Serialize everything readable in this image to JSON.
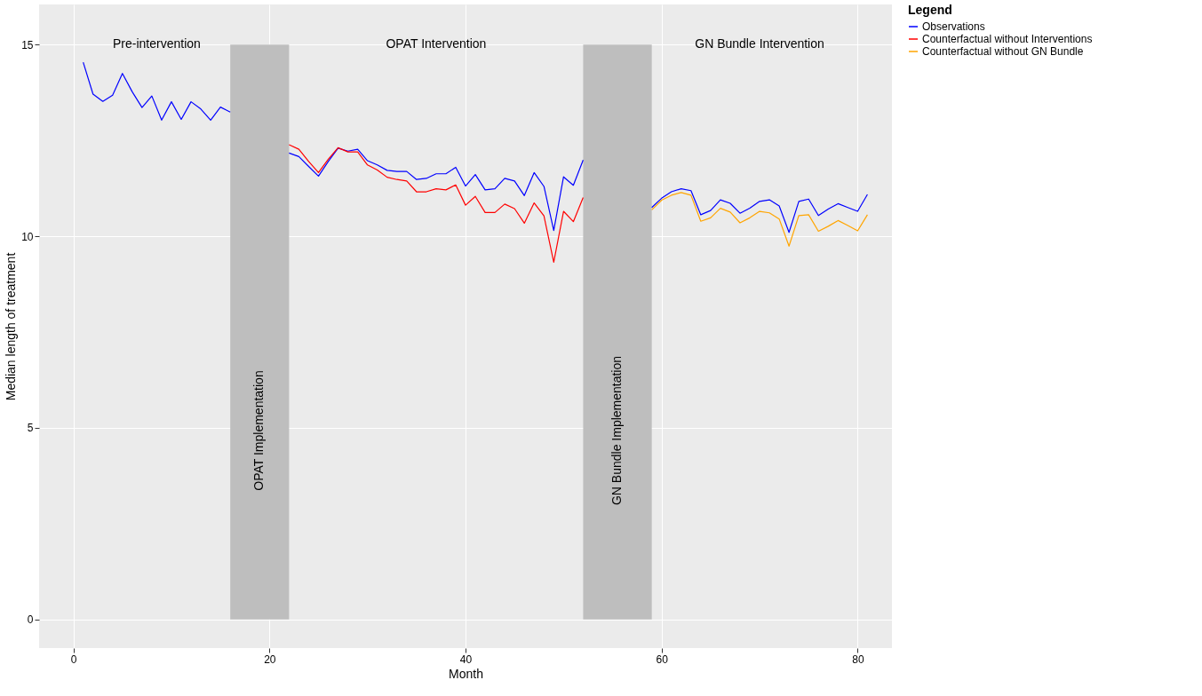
{
  "chart_data": {
    "type": "line",
    "xlabel": "Month",
    "ylabel": "Median length of treatment",
    "legend_title": "Legend",
    "xlim": [
      -3.5,
      83.5
    ],
    "ylim": [
      -0.75,
      16.05
    ],
    "xticks": [
      0,
      20,
      40,
      60,
      80
    ],
    "yticks": [
      0,
      5,
      10,
      15
    ],
    "grid": true,
    "legend": "right",
    "series": [
      {
        "name": "Observations",
        "color": "#0000ff",
        "x": [
          1,
          2,
          3,
          4,
          5,
          6,
          7,
          8,
          9,
          10,
          11,
          12,
          13,
          14,
          15,
          16,
          17,
          18,
          19,
          20,
          21,
          22,
          23,
          24,
          25,
          26,
          27,
          28,
          29,
          30,
          31,
          32,
          33,
          34,
          35,
          36,
          37,
          38,
          39,
          40,
          41,
          42,
          43,
          44,
          45,
          46,
          47,
          48,
          49,
          50,
          51,
          52,
          53,
          54,
          55,
          56,
          57,
          58,
          59,
          60,
          61,
          62,
          63,
          64,
          65,
          66,
          67,
          68,
          69,
          70,
          71,
          72,
          73,
          74,
          75,
          76,
          77,
          78,
          79,
          80,
          81
        ],
        "values": [
          14.54,
          13.71,
          13.52,
          13.68,
          14.25,
          13.77,
          13.36,
          13.66,
          13.03,
          13.51,
          13.05,
          13.51,
          13.32,
          13.03,
          13.37,
          13.24,
          null,
          null,
          null,
          null,
          null,
          12.17,
          12.08,
          11.82,
          11.57,
          11.95,
          12.3,
          12.22,
          12.27,
          11.97,
          11.86,
          11.72,
          11.69,
          11.69,
          11.48,
          11.51,
          11.63,
          11.63,
          11.8,
          11.31,
          11.61,
          11.21,
          11.24,
          11.51,
          11.44,
          11.06,
          11.66,
          11.3,
          10.15,
          11.55,
          11.33,
          11.99,
          null,
          null,
          null,
          null,
          null,
          null,
          10.75,
          10.99,
          11.16,
          11.24,
          11.19,
          10.56,
          10.67,
          10.95,
          10.86,
          10.6,
          10.73,
          10.91,
          10.95,
          10.79,
          10.1,
          10.91,
          10.97,
          10.54,
          10.71,
          10.85,
          10.75,
          10.65,
          11.09
        ]
      },
      {
        "name": "Counterfactual without Interventions",
        "color": "#ff0000",
        "x": [
          22,
          23,
          24,
          25,
          26,
          27,
          28,
          29,
          30,
          31,
          32,
          33,
          34,
          35,
          36,
          37,
          38,
          39,
          40,
          41,
          42,
          43,
          44,
          45,
          46,
          47,
          48,
          49,
          50,
          51,
          52
        ],
        "values": [
          12.39,
          12.27,
          11.95,
          11.66,
          12.01,
          12.31,
          12.2,
          12.2,
          11.86,
          11.73,
          11.54,
          11.48,
          11.44,
          11.16,
          11.16,
          11.24,
          11.21,
          11.34,
          10.81,
          11.04,
          10.62,
          10.62,
          10.84,
          10.72,
          10.34,
          10.87,
          10.53,
          9.32,
          10.65,
          10.38,
          11.01
        ]
      },
      {
        "name": "Counterfactual without GN Bundle",
        "color": "#ffa500",
        "x": [
          59,
          60,
          61,
          62,
          63,
          64,
          65,
          66,
          67,
          68,
          69,
          70,
          71,
          72,
          73,
          74,
          75,
          76,
          77,
          78,
          79,
          80,
          81
        ],
        "values": [
          10.69,
          10.94,
          11.07,
          11.14,
          11.07,
          10.39,
          10.48,
          10.73,
          10.63,
          10.35,
          10.48,
          10.65,
          10.61,
          10.45,
          9.74,
          10.54,
          10.56,
          10.13,
          10.26,
          10.41,
          10.28,
          10.14,
          10.56
        ]
      }
    ],
    "bands": [
      {
        "axis": "x",
        "from": 16,
        "to": 22,
        "label": "OPAT Implementation",
        "color": "#bebebe"
      },
      {
        "axis": "x",
        "from": 52,
        "to": 59,
        "label": "GN Bundle Implementation",
        "color": "#bebebe"
      }
    ],
    "annotations": [
      "Pre-intervention",
      "OPAT Intervention",
      "GN Bundle Intervention"
    ]
  }
}
